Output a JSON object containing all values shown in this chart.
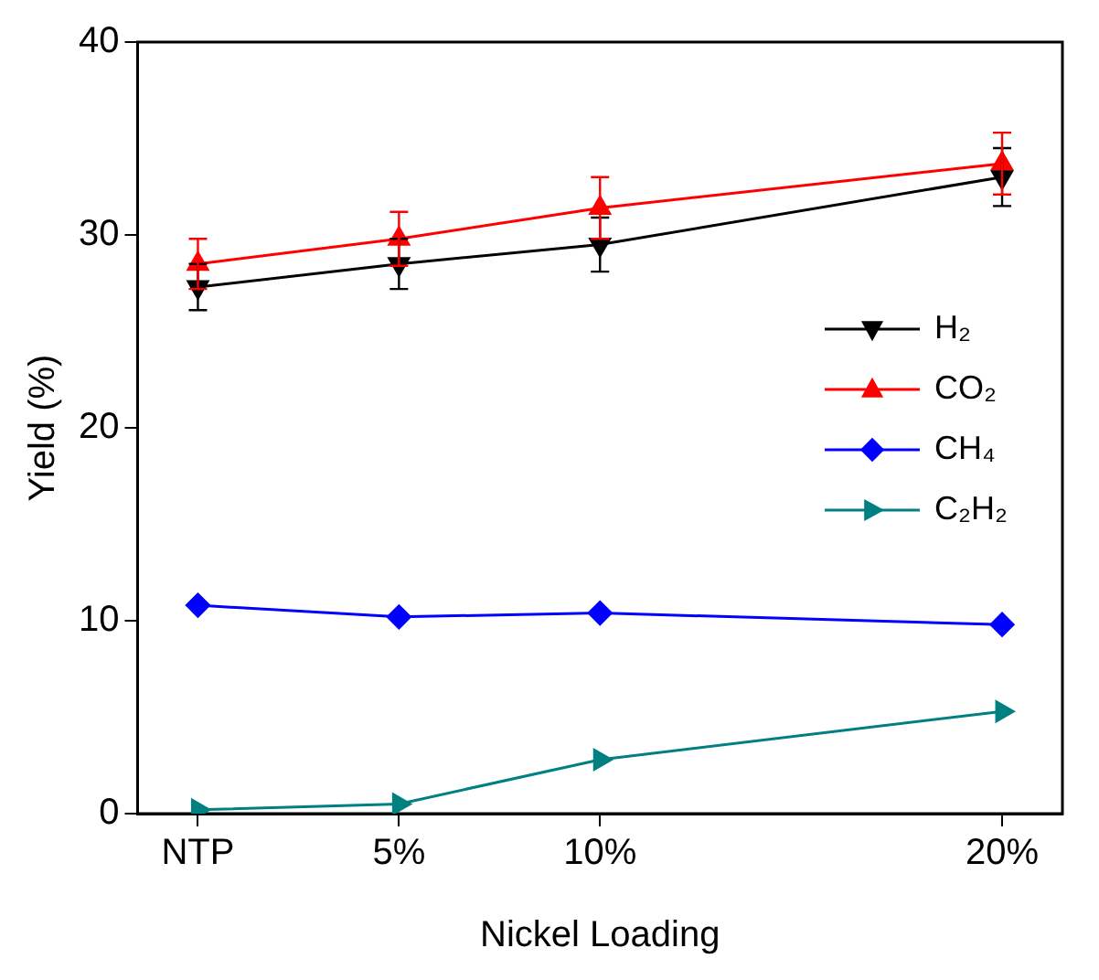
{
  "chart_data": {
    "type": "line",
    "xlabel": "Nickel Loading",
    "ylabel": "Yield (%)",
    "x": [
      0,
      5,
      10,
      20
    ],
    "xlim": [
      -1.5,
      21.5
    ],
    "xticks": [
      {
        "value": 0,
        "label": "NTP"
      },
      {
        "value": 5,
        "label": "5%"
      },
      {
        "value": 10,
        "label": "10%"
      },
      {
        "value": 20,
        "label": "20%"
      }
    ],
    "ylim": [
      0,
      40
    ],
    "yticks": [
      0,
      10,
      20,
      30,
      40
    ],
    "series": [
      {
        "name": "H₂",
        "color": "#000000",
        "marker": "triangle-down",
        "values": [
          27.3,
          28.5,
          29.5,
          33.0
        ],
        "errors": [
          1.2,
          1.3,
          1.4,
          1.5
        ]
      },
      {
        "name": "CO₂",
        "color": "#ff0000",
        "marker": "triangle",
        "values": [
          28.5,
          29.8,
          31.4,
          33.7
        ],
        "errors": [
          1.3,
          1.4,
          1.6,
          1.6
        ]
      },
      {
        "name": "CH₄",
        "color": "#0000ff",
        "marker": "diamond",
        "values": [
          10.8,
          10.2,
          10.4,
          9.8
        ]
      },
      {
        "name": "C₂H₂",
        "color": "#008080",
        "marker": "triangle-right",
        "values": [
          0.2,
          0.5,
          2.8,
          5.3
        ]
      }
    ],
    "grid": false,
    "legend": "right"
  }
}
